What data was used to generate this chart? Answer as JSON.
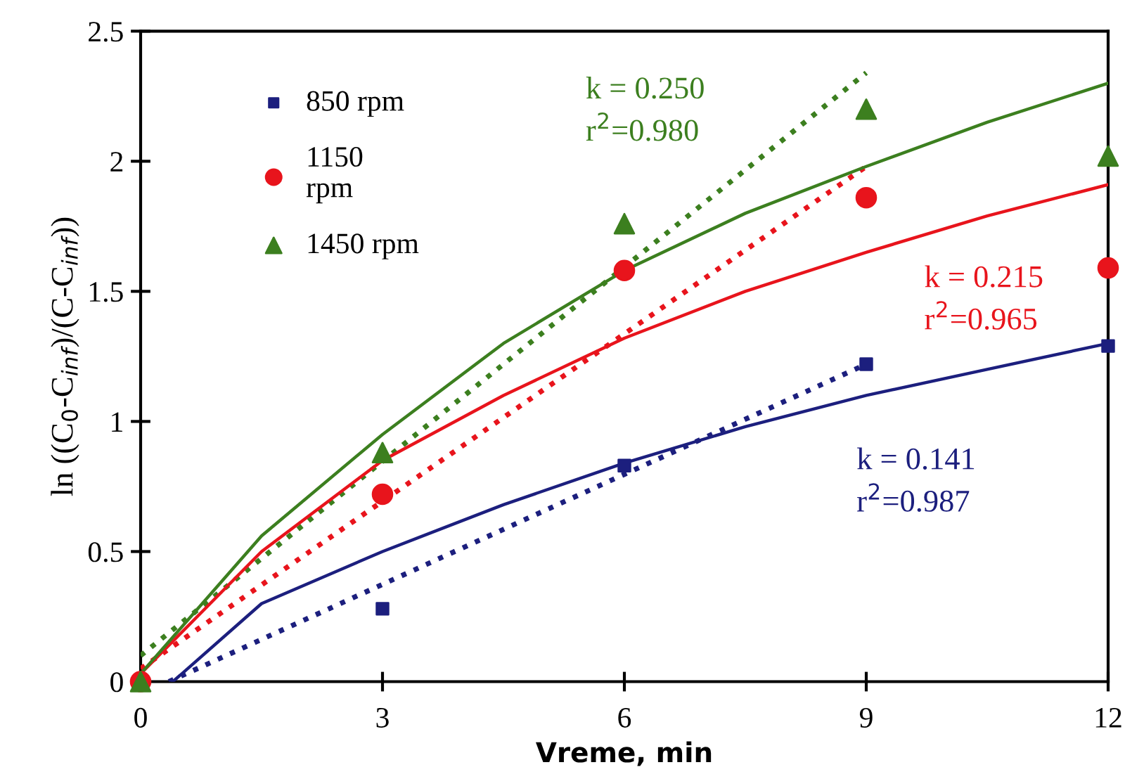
{
  "chart_data": {
    "type": "scatter",
    "xlabel": "Vreme, min",
    "ylabel": "ln ((C$_{0}$-C$_{inf}$)/(C-C$_{inf}$))",
    "xlim": [
      0,
      12
    ],
    "xticks": [
      0,
      3,
      6,
      9,
      12
    ],
    "ylim": [
      0,
      2.5
    ],
    "yticks": [
      0,
      0.5,
      1,
      1.5,
      2,
      2.5
    ],
    "grid": false,
    "legend": "top left",
    "series": [
      {
        "name": "850 rpm",
        "marker": "square",
        "color": "#1c1f7e",
        "x": [
          3,
          6,
          9,
          12
        ],
        "values": [
          0.28,
          0.83,
          1.22,
          1.29
        ]
      },
      {
        "name": "1150\nrpm",
        "marker": "circle",
        "color": "#e8141c",
        "x": [
          0,
          3,
          6,
          9,
          12
        ],
        "values": [
          0,
          0.72,
          1.58,
          1.86,
          1.59
        ]
      },
      {
        "name": "1450 rpm",
        "marker": "triangle",
        "color": "#3c7f1f",
        "x": [
          0,
          3,
          6,
          9,
          12
        ],
        "values": [
          0,
          0.88,
          1.76,
          2.2,
          2.02
        ]
      },
      {
        "type": "line",
        "line_style": "dotted",
        "color": "#1c1f7e",
        "x": [
          0.35,
          9
        ],
        "values": [
          0,
          1.22
        ]
      },
      {
        "type": "line",
        "line_style": "dotted",
        "color": "#e8141c",
        "x": [
          0,
          9
        ],
        "values": [
          0.05,
          1.98
        ]
      },
      {
        "type": "line",
        "line_style": "dotted",
        "color": "#3c7f1f",
        "x": [
          0,
          9
        ],
        "values": [
          0.1,
          2.34
        ]
      },
      {
        "type": "line",
        "line_style": "solid",
        "color": "#1c1f7e",
        "x": [
          0.4,
          1.5,
          3,
          4.5,
          6,
          7.5,
          9,
          10.5,
          12
        ],
        "values": [
          0,
          0.3,
          0.5,
          0.68,
          0.84,
          0.98,
          1.1,
          1.2,
          1.3
        ]
      },
      {
        "type": "line",
        "line_style": "solid",
        "color": "#e8141c",
        "x": [
          0,
          1.5,
          3,
          4.5,
          6,
          7.5,
          9,
          10.5,
          12
        ],
        "values": [
          0.03,
          0.5,
          0.85,
          1.1,
          1.32,
          1.5,
          1.65,
          1.79,
          1.91
        ]
      },
      {
        "type": "line",
        "line_style": "solid",
        "color": "#3c7f1f",
        "x": [
          0,
          1.5,
          3,
          4.5,
          6,
          7.5,
          9,
          10.5,
          12
        ],
        "values": [
          0.03,
          0.56,
          0.95,
          1.3,
          1.58,
          1.8,
          1.98,
          2.15,
          2.3
        ]
      }
    ],
    "annotations": [
      "k = 0.141\nr$^{2}$=0.987",
      "k = 0.215\nr$^{2}$=0.965",
      "k = 0.250\nr$^{2}$=0.980"
    ]
  }
}
